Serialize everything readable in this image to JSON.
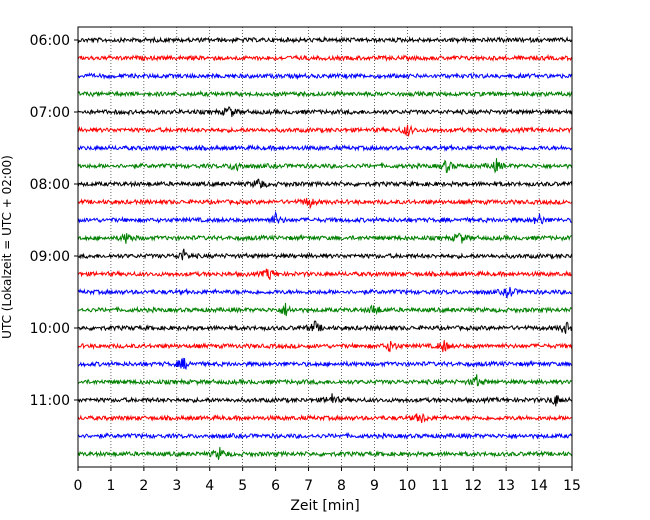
{
  "chart_data": {
    "type": "line",
    "title": "",
    "xlabel": "Zeit  [min]",
    "ylabel": "UTC (Lokalzeit = UTC + 02:00)",
    "xlim": [
      0,
      15
    ],
    "xticks": [
      0,
      1,
      2,
      3,
      4,
      5,
      6,
      7,
      8,
      9,
      10,
      11,
      12,
      13,
      14,
      15
    ],
    "grid": "vertical dotted at each minute",
    "legend": "none",
    "trace_interval_min": 15,
    "colors_cycle": [
      "#000000",
      "#ff0000",
      "#0000ff",
      "#008000"
    ],
    "y_tick_labels": [
      "06:00",
      "07:00",
      "08:00",
      "09:00",
      "10:00",
      "11:00"
    ],
    "traces": [
      {
        "start": "06:00",
        "color": "#000000",
        "events": []
      },
      {
        "start": "06:15",
        "color": "#ff0000",
        "events": []
      },
      {
        "start": "06:30",
        "color": "#0000ff",
        "events": []
      },
      {
        "start": "06:45",
        "color": "#008000",
        "events": []
      },
      {
        "start": "07:00",
        "color": "#000000",
        "events": [
          4.6
        ]
      },
      {
        "start": "07:15",
        "color": "#ff0000",
        "events": [
          10.0
        ]
      },
      {
        "start": "07:30",
        "color": "#0000ff",
        "events": []
      },
      {
        "start": "07:45",
        "color": "#008000",
        "events": [
          4.8,
          11.2,
          12.7
        ]
      },
      {
        "start": "08:00",
        "color": "#000000",
        "events": [
          5.5
        ]
      },
      {
        "start": "08:15",
        "color": "#ff0000",
        "events": [
          7.0
        ]
      },
      {
        "start": "08:30",
        "color": "#0000ff",
        "events": [
          6.0,
          14.0
        ]
      },
      {
        "start": "08:45",
        "color": "#008000",
        "events": [
          1.5,
          11.6
        ]
      },
      {
        "start": "09:00",
        "color": "#000000",
        "events": [
          3.2
        ]
      },
      {
        "start": "09:15",
        "color": "#ff0000",
        "events": [
          5.8
        ]
      },
      {
        "start": "09:30",
        "color": "#0000ff",
        "events": [
          13.1
        ]
      },
      {
        "start": "09:45",
        "color": "#008000",
        "events": [
          6.3,
          9.0
        ]
      },
      {
        "start": "10:00",
        "color": "#000000",
        "events": [
          7.2,
          14.8
        ]
      },
      {
        "start": "10:15",
        "color": "#ff0000",
        "events": [
          9.5,
          11.1
        ]
      },
      {
        "start": "10:30",
        "color": "#0000ff",
        "events": [
          3.2
        ]
      },
      {
        "start": "10:45",
        "color": "#008000",
        "events": [
          12.1
        ]
      },
      {
        "start": "11:00",
        "color": "#000000",
        "events": [
          7.7,
          14.5
        ]
      },
      {
        "start": "11:15",
        "color": "#ff0000",
        "events": [
          10.4
        ]
      },
      {
        "start": "11:30",
        "color": "#0000ff",
        "events": []
      },
      {
        "start": "11:45",
        "color": "#008000",
        "events": [
          4.3
        ]
      }
    ]
  }
}
